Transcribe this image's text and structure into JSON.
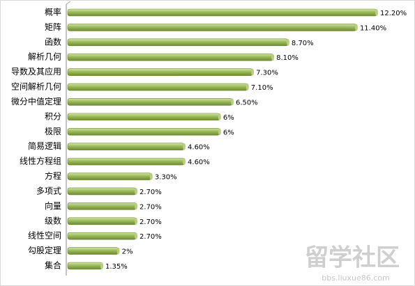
{
  "chart_data": {
    "type": "bar",
    "orientation": "horizontal",
    "color": "#9bbb59",
    "categories": [
      "概率",
      "矩阵",
      "函数",
      "解析几何",
      "导数及其应用",
      "空间解析几何",
      "微分中值定理",
      "积分",
      "极限",
      "简易逻辑",
      "线性方程组",
      "方程",
      "多项式",
      "向量",
      "级数",
      "线性空间",
      "勾股定理",
      "集合"
    ],
    "values": [
      12.2,
      11.4,
      8.7,
      8.1,
      7.3,
      7.1,
      6.5,
      6,
      6,
      4.6,
      4.6,
      3.3,
      2.7,
      2.7,
      2.7,
      2.7,
      2,
      1.35
    ],
    "value_labels": [
      "12.20%",
      "11.40%",
      "8.70%",
      "8.10%",
      "7.30%",
      "7.10%",
      "6.50%",
      "6%",
      "6%",
      "4.60%",
      "4.60%",
      "3.30%",
      "2.70%",
      "2.70%",
      "2.70%",
      "2.70%",
      "2%",
      "1.35%"
    ]
  },
  "watermark": {
    "title": "留学社区",
    "url": "bbs.liuxue86.com"
  }
}
